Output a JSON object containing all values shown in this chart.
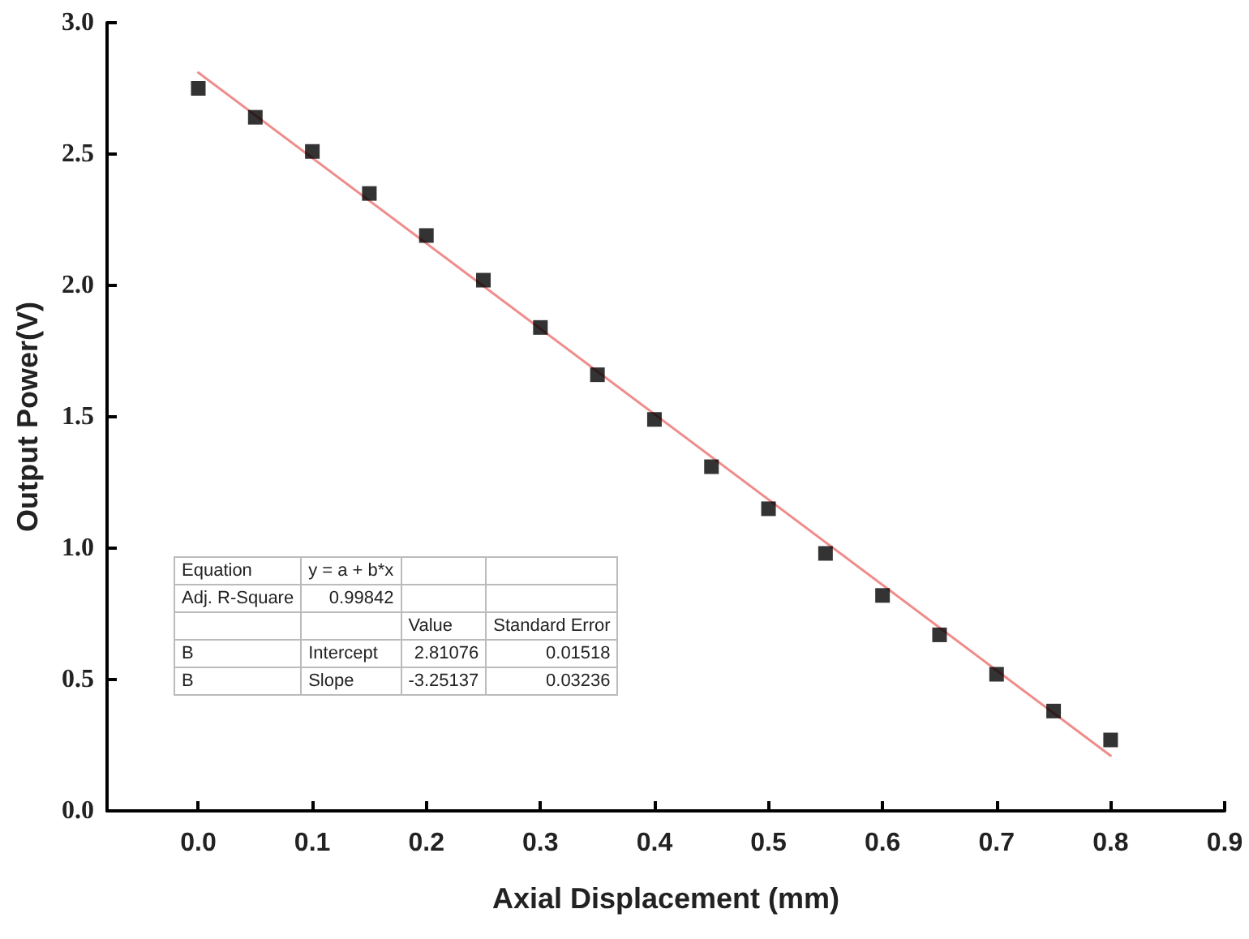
{
  "chart_data": {
    "type": "scatter",
    "xlabel": "Axial Displacement (mm)",
    "ylabel": "Output Power(V)",
    "x": [
      0,
      0.05,
      0.1,
      0.15,
      0.2,
      0.25,
      0.3,
      0.35,
      0.4,
      0.45,
      0.5,
      0.55,
      0.6,
      0.65,
      0.7,
      0.75,
      0.8
    ],
    "series": [
      {
        "color": "#000000",
        "marker": "square",
        "values": [
          2.75,
          2.64,
          2.51,
          2.35,
          2.19,
          2.02,
          1.84,
          1.66,
          1.49,
          1.31,
          1.15,
          0.98,
          0.82,
          0.67,
          0.52,
          0.38,
          0.27
        ]
      },
      {
        "type": "line",
        "color": "#f08c8c",
        "marker": "none",
        "line_style": "solid",
        "x": [
          0,
          0.8
        ],
        "values": [
          2.81,
          0.21
        ]
      }
    ],
    "xlim": [
      -0.08,
      0.9
    ],
    "xticks": [
      {
        "value": 0,
        "label": "0.0"
      },
      {
        "value": 0.1,
        "label": "0.1"
      },
      {
        "value": 0.2,
        "label": "0.2"
      },
      {
        "value": 0.3,
        "label": "0.3"
      },
      {
        "value": 0.4,
        "label": "0.4"
      },
      {
        "value": 0.5,
        "label": "0.5"
      },
      {
        "value": 0.6,
        "label": "0.6"
      },
      {
        "value": 0.7,
        "label": "0.7"
      },
      {
        "value": 0.8,
        "label": "0.8"
      },
      {
        "value": 0.9,
        "label": "0.9"
      }
    ],
    "ylim": [
      0,
      3
    ],
    "yticks": [
      {
        "value": 0,
        "label": "0.0"
      },
      {
        "value": 0.5,
        "label": "0.5"
      },
      {
        "value": 1,
        "label": "1.0"
      },
      {
        "value": 1.5,
        "label": "1.5"
      },
      {
        "value": 2,
        "label": "2.0"
      },
      {
        "value": 2.5,
        "label": "2.5"
      },
      {
        "value": 3,
        "label": "3.0"
      }
    ],
    "grid": false,
    "annotations": [
      "Equation",
      "y = a + b*x",
      "Adj. R-Square",
      "0.99842",
      "Value",
      "Standard Error",
      "B",
      "Intercept",
      "2.81076",
      "0.01518",
      "B",
      "Slope",
      "-3.25137",
      "0.03236"
    ]
  }
}
